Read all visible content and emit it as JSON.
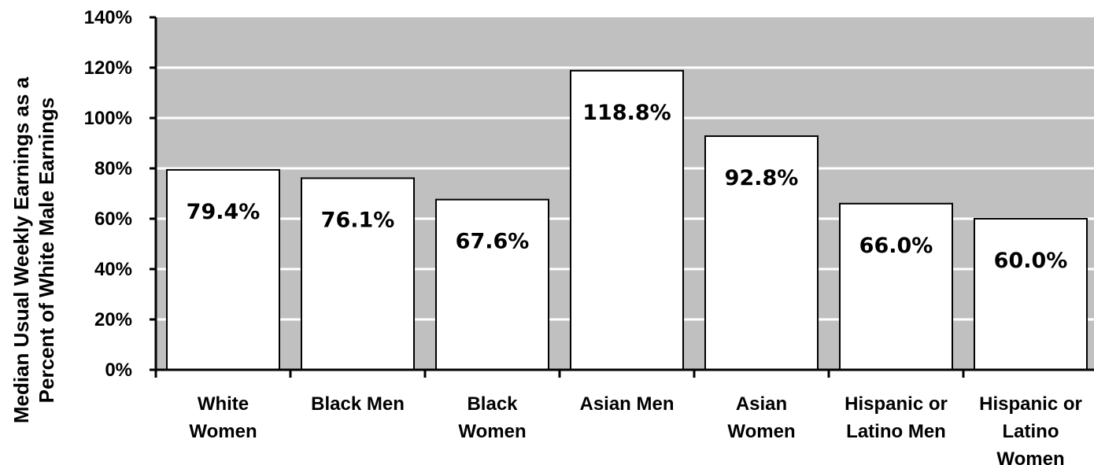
{
  "chart_data": {
    "type": "bar",
    "categories": [
      [
        "White",
        "Women"
      ],
      [
        "Black Men"
      ],
      [
        "Black",
        "Women"
      ],
      [
        "Asian Men"
      ],
      [
        "Asian",
        "Women"
      ],
      [
        "Hispanic or",
        "Latino Men"
      ],
      [
        "Hispanic or",
        "Latino",
        "Women"
      ]
    ],
    "values": [
      79.4,
      76.1,
      67.6,
      118.8,
      92.8,
      66.0,
      60.0
    ],
    "data_labels": [
      "79.4%",
      "76.1%",
      "67.6%",
      "118.8%",
      "92.8%",
      "66.0%",
      "60.0%"
    ],
    "ylabel": [
      "Median Usual Weekly Earnings as a",
      "Percent of White Male Earnings"
    ],
    "ylim": [
      0,
      140
    ],
    "yticks": [
      0,
      20,
      40,
      60,
      80,
      100,
      120,
      140
    ],
    "ytick_labels": [
      "0%",
      "20%",
      "40%",
      "60%",
      "80%",
      "100%",
      "120%",
      "140%"
    ],
    "grid": true,
    "colors": {
      "plot_background": "#c0c0c0",
      "bar_fill": "#ffffff",
      "bar_stroke": "#000000",
      "gridline": "#ffffff"
    }
  }
}
